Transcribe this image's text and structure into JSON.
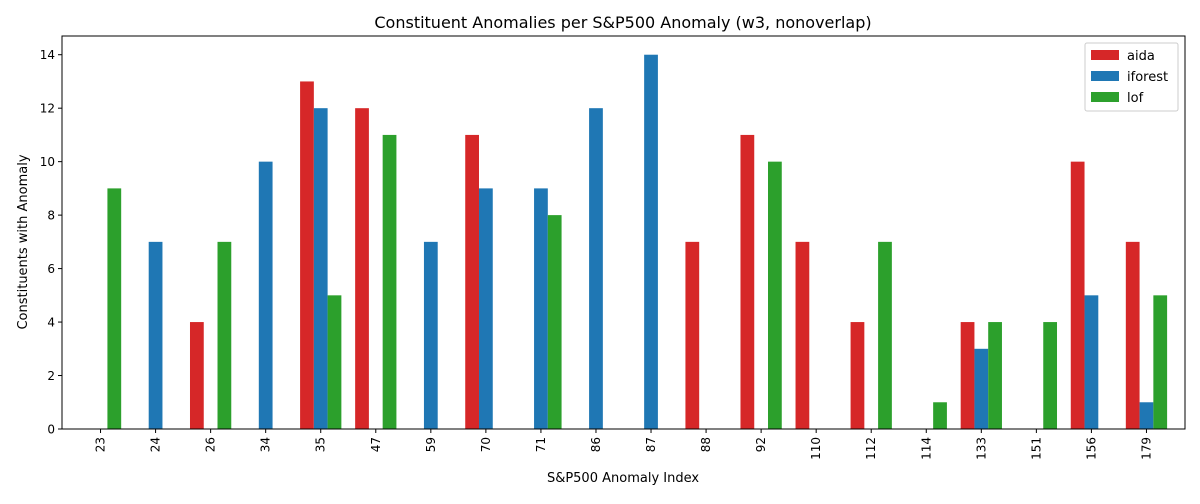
{
  "chart_data": {
    "type": "bar",
    "title": "Constituent Anomalies per S&P500 Anomaly (w3, nonoverlap)",
    "xlabel": "S&P500 Anomaly Index",
    "ylabel": "Constituents with Anomaly",
    "categories": [
      "23",
      "24",
      "26",
      "34",
      "35",
      "47",
      "59",
      "70",
      "71",
      "86",
      "87",
      "88",
      "92",
      "110",
      "112",
      "114",
      "133",
      "151",
      "156",
      "179"
    ],
    "series": [
      {
        "name": "aida",
        "color": "#d62728",
        "values": [
          0,
          0,
          4,
          0,
          13,
          12,
          0,
          11,
          0,
          0,
          0,
          7,
          11,
          7,
          4,
          0,
          4,
          0,
          10,
          7
        ]
      },
      {
        "name": "iforest",
        "color": "#1f77b4",
        "values": [
          0,
          7,
          0,
          10,
          12,
          0,
          7,
          9,
          9,
          12,
          14,
          0,
          0,
          0,
          0,
          0,
          3,
          0,
          5,
          1
        ]
      },
      {
        "name": "lof",
        "color": "#2ca02c",
        "values": [
          9,
          0,
          7,
          0,
          5,
          11,
          0,
          0,
          8,
          0,
          0,
          0,
          10,
          0,
          7,
          1,
          4,
          4,
          0,
          5
        ]
      }
    ],
    "ylim": [
      0,
      14.7
    ],
    "yticks": [
      0,
      2,
      4,
      6,
      8,
      10,
      12,
      14
    ],
    "grid": false,
    "legend_position": "top-right"
  }
}
